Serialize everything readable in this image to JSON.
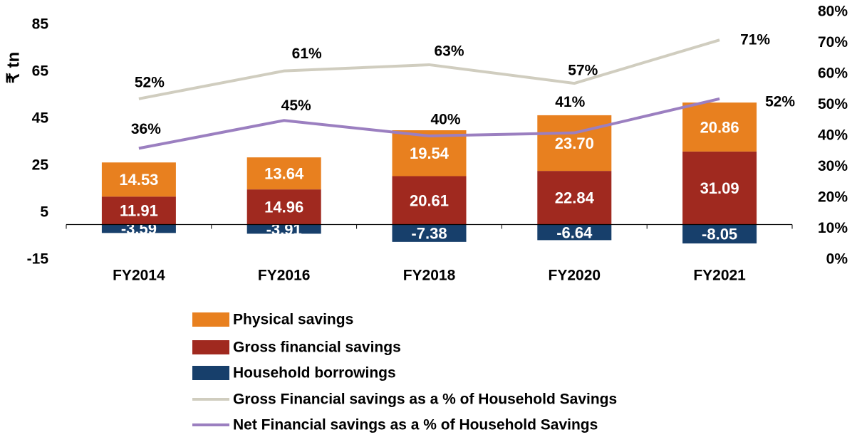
{
  "chart_data": {
    "type": "bar",
    "ylabel": "₹ tn",
    "categories": [
      "FY2014",
      "FY2016",
      "FY2018",
      "FY2020",
      "FY2021"
    ],
    "ylim": [
      -15,
      85
    ],
    "yticks": [
      -15,
      5,
      25,
      45,
      65,
      85
    ],
    "y2lim": [
      0,
      80
    ],
    "y2ticks": [
      {
        "value": 0,
        "label": "0%"
      },
      {
        "value": 10,
        "label": "10%"
      },
      {
        "value": 20,
        "label": "20%"
      },
      {
        "value": 30,
        "label": "30%"
      },
      {
        "value": 40,
        "label": "40%"
      },
      {
        "value": 50,
        "label": "50%"
      },
      {
        "value": 60,
        "label": "60%"
      },
      {
        "value": 70,
        "label": "70%"
      },
      {
        "value": 80,
        "label": "80%"
      }
    ],
    "series": [
      {
        "name": "Physical savings",
        "type": "bar",
        "color": "#e8801f",
        "values": [
          14.53,
          13.64,
          19.54,
          23.7,
          20.86
        ],
        "value_labels": [
          "14.53",
          "13.64",
          "19.54",
          "23.70",
          "20.86"
        ]
      },
      {
        "name": "Gross financial savings",
        "type": "bar",
        "color": "#a0291f",
        "values": [
          11.91,
          14.96,
          20.61,
          22.84,
          31.09
        ],
        "value_labels": [
          "11.91",
          "14.96",
          "20.61",
          "22.84",
          "31.09"
        ]
      },
      {
        "name": "Household borrowings",
        "type": "bar",
        "color": "#173f6b",
        "values": [
          -3.59,
          -3.91,
          -7.38,
          -6.64,
          -8.05
        ],
        "value_labels": [
          "-3.59",
          "-3.91",
          "-7.38",
          "-6.64",
          "-8.05"
        ]
      },
      {
        "name": "Gross Financial savings as a % of Household Savings",
        "type": "line",
        "axis": "y2",
        "color": "#d0cdbf",
        "values": [
          52,
          61,
          63,
          57,
          71
        ],
        "value_labels": [
          "52%",
          "61%",
          "63%",
          "57%",
          "71%"
        ]
      },
      {
        "name": "Net Financial savings as a % of Household Savings",
        "type": "line",
        "axis": "y2",
        "color": "#9b7fc0",
        "values": [
          36,
          45,
          40,
          41,
          52
        ],
        "value_labels": [
          "36%",
          "45%",
          "40%",
          "41%",
          "52%"
        ]
      }
    ]
  }
}
